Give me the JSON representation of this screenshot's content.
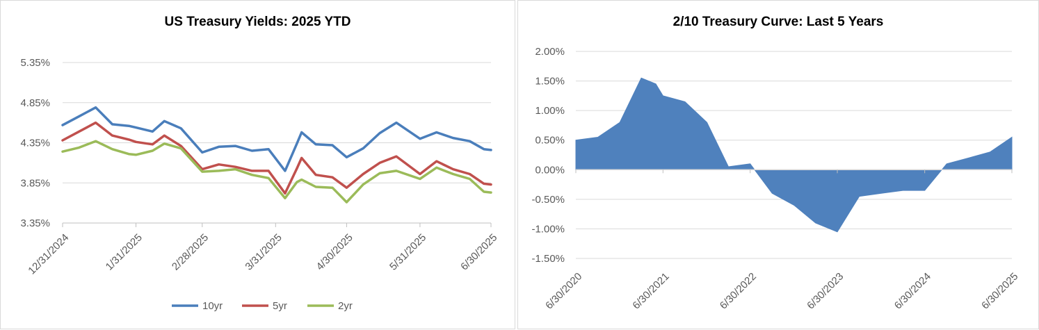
{
  "chart_data": [
    {
      "type": "line",
      "title": "US Treasury Yields: 2025 YTD",
      "xlabel": "",
      "ylabel": "",
      "x_tick_labels": [
        "12/31/2024",
        "1/31/2025",
        "2/28/2025",
        "3/31/2025",
        "4/30/2025",
        "5/31/2025",
        "6/30/2025"
      ],
      "y_tick_labels": [
        "3.35%",
        "3.85%",
        "4.35%",
        "4.85%",
        "5.35%"
      ],
      "ylim": [
        3.35,
        5.35
      ],
      "grid": true,
      "legend": "bottom",
      "series": [
        {
          "name": "10yr",
          "color": "#4a7ebb",
          "points": [
            [
              "12/31/2024",
              4.57
            ],
            [
              "1/7/2025",
              4.68
            ],
            [
              "1/14/2025",
              4.79
            ],
            [
              "1/21/2025",
              4.58
            ],
            [
              "1/28/2025",
              4.56
            ],
            [
              "1/31/2025",
              4.54
            ],
            [
              "2/7/2025",
              4.49
            ],
            [
              "2/12/2025",
              4.62
            ],
            [
              "2/19/2025",
              4.53
            ],
            [
              "2/28/2025",
              4.23
            ],
            [
              "3/7/2025",
              4.3
            ],
            [
              "3/14/2025",
              4.31
            ],
            [
              "3/21/2025",
              4.25
            ],
            [
              "3/28/2025",
              4.27
            ],
            [
              "4/4/2025",
              4.0
            ],
            [
              "4/9/2025",
              4.34
            ],
            [
              "4/11/2025",
              4.48
            ],
            [
              "4/17/2025",
              4.33
            ],
            [
              "4/24/2025",
              4.32
            ],
            [
              "4/30/2025",
              4.17
            ],
            [
              "5/7/2025",
              4.28
            ],
            [
              "5/14/2025",
              4.47
            ],
            [
              "5/21/2025",
              4.6
            ],
            [
              "5/31/2025",
              4.4
            ],
            [
              "6/7/2025",
              4.48
            ],
            [
              "6/14/2025",
              4.41
            ],
            [
              "6/21/2025",
              4.37
            ],
            [
              "6/27/2025",
              4.27
            ],
            [
              "6/30/2025",
              4.26
            ]
          ]
        },
        {
          "name": "5yr",
          "color": "#c0504d",
          "points": [
            [
              "12/31/2024",
              4.38
            ],
            [
              "1/7/2025",
              4.49
            ],
            [
              "1/14/2025",
              4.6
            ],
            [
              "1/21/2025",
              4.44
            ],
            [
              "1/28/2025",
              4.39
            ],
            [
              "1/31/2025",
              4.36
            ],
            [
              "2/7/2025",
              4.33
            ],
            [
              "2/12/2025",
              4.44
            ],
            [
              "2/19/2025",
              4.31
            ],
            [
              "2/28/2025",
              4.02
            ],
            [
              "3/7/2025",
              4.08
            ],
            [
              "3/14/2025",
              4.05
            ],
            [
              "3/21/2025",
              4.0
            ],
            [
              "3/28/2025",
              4.0
            ],
            [
              "4/4/2025",
              3.72
            ],
            [
              "4/9/2025",
              4.03
            ],
            [
              "4/11/2025",
              4.16
            ],
            [
              "4/17/2025",
              3.95
            ],
            [
              "4/24/2025",
              3.92
            ],
            [
              "4/30/2025",
              3.79
            ],
            [
              "5/7/2025",
              3.96
            ],
            [
              "5/14/2025",
              4.1
            ],
            [
              "5/21/2025",
              4.18
            ],
            [
              "5/31/2025",
              3.96
            ],
            [
              "6/7/2025",
              4.12
            ],
            [
              "6/14/2025",
              4.02
            ],
            [
              "6/21/2025",
              3.96
            ],
            [
              "6/27/2025",
              3.84
            ],
            [
              "6/30/2025",
              3.83
            ]
          ]
        },
        {
          "name": "2yr",
          "color": "#9bbb59",
          "points": [
            [
              "12/31/2024",
              4.24
            ],
            [
              "1/7/2025",
              4.29
            ],
            [
              "1/14/2025",
              4.37
            ],
            [
              "1/21/2025",
              4.27
            ],
            [
              "1/28/2025",
              4.21
            ],
            [
              "1/31/2025",
              4.2
            ],
            [
              "2/7/2025",
              4.25
            ],
            [
              "2/12/2025",
              4.34
            ],
            [
              "2/19/2025",
              4.28
            ],
            [
              "2/28/2025",
              3.99
            ],
            [
              "3/7/2025",
              4.0
            ],
            [
              "3/14/2025",
              4.02
            ],
            [
              "3/21/2025",
              3.95
            ],
            [
              "3/28/2025",
              3.91
            ],
            [
              "4/4/2025",
              3.66
            ],
            [
              "4/9/2025",
              3.86
            ],
            [
              "4/11/2025",
              3.89
            ],
            [
              "4/17/2025",
              3.8
            ],
            [
              "4/24/2025",
              3.79
            ],
            [
              "4/30/2025",
              3.61
            ],
            [
              "5/7/2025",
              3.83
            ],
            [
              "5/14/2025",
              3.97
            ],
            [
              "5/21/2025",
              4.0
            ],
            [
              "5/31/2025",
              3.9
            ],
            [
              "6/7/2025",
              4.04
            ],
            [
              "6/14/2025",
              3.96
            ],
            [
              "6/21/2025",
              3.9
            ],
            [
              "6/27/2025",
              3.74
            ],
            [
              "6/30/2025",
              3.73
            ]
          ]
        }
      ]
    },
    {
      "type": "area",
      "title": "2/10 Treasury Curve: Last 5 Years",
      "xlabel": "",
      "ylabel": "",
      "x_tick_labels": [
        "6/30/2020",
        "6/30/2021",
        "6/30/2022",
        "6/30/2023",
        "6/30/2024",
        "6/30/2025"
      ],
      "y_tick_labels": [
        "-1.50%",
        "-1.00%",
        "-0.50%",
        "0.00%",
        "0.50%",
        "1.00%",
        "1.50%",
        "2.00%"
      ],
      "ylim": [
        -1.5,
        2.0
      ],
      "grid": true,
      "color": "#4f81bd",
      "series": [
        {
          "name": "",
          "points": [
            [
              "6/30/2020",
              0.5
            ],
            [
              "9/30/2020",
              0.55
            ],
            [
              "12/31/2020",
              0.8
            ],
            [
              "3/31/2021",
              1.55
            ],
            [
              "5/31/2021",
              1.45
            ],
            [
              "6/30/2021",
              1.25
            ],
            [
              "9/30/2021",
              1.15
            ],
            [
              "12/31/2021",
              0.8
            ],
            [
              "3/31/2022",
              0.05
            ],
            [
              "6/30/2022",
              0.1
            ],
            [
              "9/30/2022",
              -0.4
            ],
            [
              "12/31/2022",
              -0.6
            ],
            [
              "3/31/2023",
              -0.9
            ],
            [
              "6/30/2023",
              -1.05
            ],
            [
              "9/30/2023",
              -0.45
            ],
            [
              "12/31/2023",
              -0.4
            ],
            [
              "3/31/2024",
              -0.35
            ],
            [
              "6/30/2024",
              -0.35
            ],
            [
              "9/30/2024",
              0.1
            ],
            [
              "12/31/2024",
              0.2
            ],
            [
              "3/31/2025",
              0.3
            ],
            [
              "6/30/2025",
              0.55
            ]
          ]
        }
      ]
    }
  ]
}
